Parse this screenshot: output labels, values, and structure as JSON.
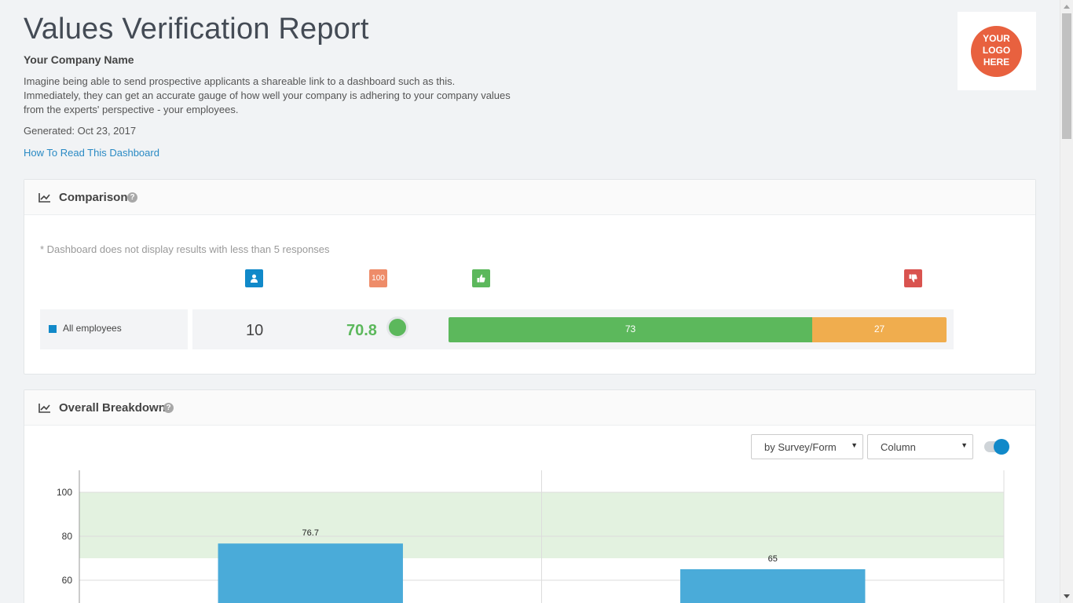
{
  "header": {
    "title": "Values Verification Report",
    "company": "Your Company Name",
    "intro": "Imagine being able to send prospective applicants a shareable link to a dashboard such as this. Immediately, they can get an accurate gauge of how well your company is adhering to your company values from the experts' perspective - your employees.",
    "generated": "Generated: Oct 23, 2017",
    "how_to_link": "How To Read This Dashboard",
    "logo_lines": [
      "YOUR",
      "LOGO",
      "HERE"
    ]
  },
  "comparison": {
    "title": "Comparison",
    "help_glyph": "?",
    "note": "* Dashboard does not display results with less than 5 responses",
    "column_icons": {
      "respondents": "user-icon",
      "score_label": "100",
      "positive": "thumbs-up-icon",
      "negative": "thumbs-down-icon"
    },
    "rows": [
      {
        "label": "All employees",
        "count": "10",
        "score": "70.8",
        "positive_pct": 73,
        "negative_pct": 27,
        "positive_label": "73",
        "negative_label": "27"
      }
    ]
  },
  "breakdown": {
    "title": "Overall Breakdown",
    "help_glyph": "?",
    "group_select": "by Survey/Form",
    "type_select": "Column",
    "toggle_on": true
  },
  "chart_data": {
    "type": "bar",
    "categories": [
      "",
      ""
    ],
    "values": [
      76.7,
      65
    ],
    "value_labels": [
      "76.7",
      "65"
    ],
    "y_ticks": [
      "100",
      "80",
      "60"
    ],
    "band_range": [
      70,
      100
    ],
    "ylim": [
      50,
      110
    ],
    "grid": true,
    "colors": {
      "bar": "#4aabd9",
      "band": "#e3f2e0"
    }
  },
  "colors": {
    "accent": "#1189c9",
    "positive": "#5cb85c",
    "neutral": "#f0ad4e",
    "negative": "#d9534f",
    "score_icon": "#ee8c69"
  }
}
